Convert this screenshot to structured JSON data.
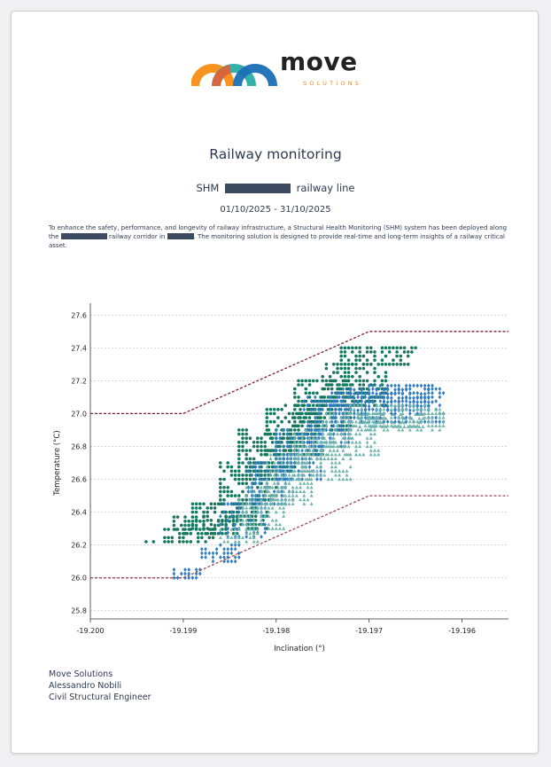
{
  "brand": {
    "name": "move",
    "tagline": "SOLUTIONS",
    "colors": [
      "#f7931e",
      "#f25c2b",
      "#1fa9a2",
      "#1a6fb5"
    ]
  },
  "report": {
    "title": "Railway monitoring",
    "subtitle_prefix": "SHM",
    "subtitle_suffix": "railway line",
    "period": "01/10/2025 - 31/10/2025",
    "intro_1": "To enhance the safety, performance, and longevity of railway infrastructure, a Structural Health Monitoring (SHM) system has been deployed along the",
    "intro_2": "railway corridor in",
    "intro_3": ". The monitoring solution is designed to provide real-time and long-term insights of a railway critical asset."
  },
  "chart_data": {
    "type": "scatter",
    "xlabel": "Inclination (°)",
    "ylabel": "Temperature (°C)",
    "xlim": [
      -19.2,
      -19.1955
    ],
    "ylim": [
      25.75,
      27.65
    ],
    "xticks": [
      "-19.200",
      "-19.199",
      "-19.198",
      "-19.197",
      "-19.196"
    ],
    "xtick_values": [
      -19.2,
      -19.199,
      -19.198,
      -19.197,
      -19.196
    ],
    "yticks": [
      "25.8",
      "26.0",
      "26.2",
      "26.4",
      "26.6",
      "26.8",
      "27.0",
      "27.2",
      "27.4",
      "27.6"
    ],
    "ytick_values": [
      25.8,
      26.0,
      26.2,
      26.4,
      26.6,
      26.8,
      27.0,
      27.2,
      27.4,
      27.6
    ],
    "grid": "horizontal",
    "thresholds": [
      {
        "color": "#7b2234",
        "points": [
          [
            -19.2,
            27.0
          ],
          [
            -19.199,
            27.0
          ],
          [
            -19.197,
            27.5
          ],
          [
            -19.1955,
            27.5
          ]
        ]
      },
      {
        "color": "#9b4a58",
        "points": [
          [
            -19.2,
            26.0
          ],
          [
            -19.199,
            26.0
          ],
          [
            -19.197,
            26.5
          ],
          [
            -19.1955,
            26.5
          ]
        ]
      }
    ],
    "series": [
      {
        "marker": "circle",
        "color": "#14785f",
        "bands": [
          [
            -19.1994,
            -19.1993,
            26.22,
            26.22
          ],
          [
            -19.1992,
            -19.19865,
            26.22,
            26.3
          ],
          [
            -19.1991,
            -19.1984,
            26.27,
            26.37
          ],
          [
            -19.1989,
            -19.1981,
            26.3,
            26.45
          ],
          [
            -19.1986,
            -19.198,
            26.45,
            26.7
          ],
          [
            -19.1984,
            -19.1978,
            26.6,
            26.9
          ],
          [
            -19.1981,
            -19.1975,
            26.75,
            27.05
          ],
          [
            -19.1978,
            -19.1972,
            26.9,
            27.2
          ],
          [
            -19.1975,
            -19.1968,
            27.05,
            27.32
          ],
          [
            -19.1973,
            -19.1965,
            27.3,
            27.42
          ]
        ]
      },
      {
        "marker": "diamond",
        "color": "#2f7cc4",
        "bands": [
          [
            -19.1991,
            -19.19875,
            26.0,
            26.05
          ],
          [
            -19.1988,
            -19.1984,
            26.1,
            26.22
          ],
          [
            -19.1986,
            -19.1981,
            26.25,
            26.45
          ],
          [
            -19.1983,
            -19.1978,
            26.45,
            26.7
          ],
          [
            -19.198,
            -19.1975,
            26.6,
            26.9
          ],
          [
            -19.1977,
            -19.1972,
            26.8,
            27.1
          ],
          [
            -19.1974,
            -19.1962,
            26.95,
            27.15
          ],
          [
            -19.1972,
            -19.1963,
            27.02,
            27.18
          ]
        ]
      },
      {
        "marker": "triangle",
        "color": "#6fb4ac",
        "bands": [
          [
            -19.1986,
            -19.1982,
            26.22,
            26.3
          ],
          [
            -19.1984,
            -19.1979,
            26.3,
            26.55
          ],
          [
            -19.1981,
            -19.1976,
            26.45,
            26.75
          ],
          [
            -19.1978,
            -19.1972,
            26.6,
            26.9
          ],
          [
            -19.1975,
            -19.1969,
            26.75,
            27.0
          ],
          [
            -19.1972,
            -19.1962,
            26.9,
            27.05
          ],
          [
            -19.1971,
            -19.1964,
            26.92,
            27.0
          ]
        ]
      }
    ]
  },
  "footer": {
    "company": "Move Solutions",
    "name": "Alessandro Nobili",
    "role": "Civil Structural Engineer"
  }
}
